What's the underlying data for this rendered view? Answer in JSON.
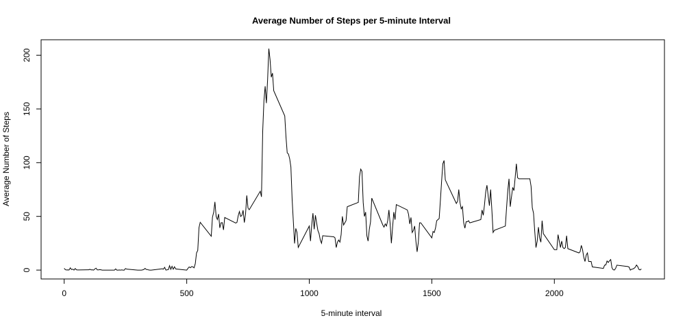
{
  "chart_data": {
    "type": "line",
    "title": "Average Number of Steps per 5-minute Interval",
    "xlabel": "5-minute interval",
    "ylabel": "Average Number of Steps",
    "color": "#000000",
    "xlim": [
      -94.2,
      2449.2
    ],
    "ylim": [
      -8.25,
      214.42
    ],
    "xticks": [
      0,
      500,
      1000,
      1500,
      2000
    ],
    "yticks": [
      0,
      50,
      100,
      150,
      200
    ],
    "x": [
      0,
      5,
      10,
      15,
      20,
      25,
      30,
      35,
      40,
      45,
      50,
      55,
      100,
      105,
      110,
      115,
      120,
      125,
      130,
      135,
      140,
      145,
      150,
      155,
      200,
      205,
      210,
      215,
      220,
      225,
      230,
      235,
      240,
      245,
      250,
      255,
      300,
      305,
      310,
      315,
      320,
      325,
      330,
      335,
      340,
      345,
      350,
      355,
      400,
      405,
      410,
      415,
      420,
      425,
      430,
      435,
      440,
      445,
      450,
      455,
      500,
      505,
      510,
      515,
      520,
      525,
      530,
      535,
      540,
      545,
      550,
      555,
      600,
      605,
      610,
      615,
      620,
      625,
      630,
      635,
      640,
      645,
      650,
      655,
      700,
      705,
      710,
      715,
      720,
      725,
      730,
      735,
      740,
      745,
      750,
      755,
      800,
      805,
      810,
      815,
      820,
      825,
      830,
      835,
      840,
      845,
      850,
      855,
      900,
      905,
      910,
      915,
      920,
      925,
      930,
      935,
      940,
      945,
      950,
      955,
      1000,
      1005,
      1010,
      1015,
      1020,
      1025,
      1030,
      1035,
      1040,
      1045,
      1050,
      1055,
      1100,
      1105,
      1110,
      1115,
      1120,
      1125,
      1130,
      1135,
      1140,
      1145,
      1150,
      1155,
      1200,
      1205,
      1210,
      1215,
      1220,
      1225,
      1230,
      1235,
      1240,
      1245,
      1250,
      1255,
      1300,
      1305,
      1310,
      1315,
      1320,
      1325,
      1330,
      1335,
      1340,
      1345,
      1350,
      1355,
      1400,
      1405,
      1410,
      1415,
      1420,
      1425,
      1430,
      1435,
      1440,
      1445,
      1450,
      1455,
      1500,
      1505,
      1510,
      1515,
      1520,
      1525,
      1530,
      1535,
      1540,
      1545,
      1550,
      1555,
      1600,
      1605,
      1610,
      1615,
      1620,
      1625,
      1630,
      1635,
      1640,
      1645,
      1650,
      1655,
      1700,
      1705,
      1710,
      1715,
      1720,
      1725,
      1730,
      1735,
      1740,
      1745,
      1750,
      1755,
      1800,
      1805,
      1810,
      1815,
      1820,
      1825,
      1830,
      1835,
      1840,
      1845,
      1850,
      1855,
      1900,
      1905,
      1910,
      1915,
      1920,
      1925,
      1930,
      1935,
      1940,
      1945,
      1950,
      1955,
      2000,
      2005,
      2010,
      2015,
      2020,
      2025,
      2030,
      2035,
      2040,
      2045,
      2050,
      2055,
      2100,
      2105,
      2110,
      2115,
      2120,
      2125,
      2130,
      2135,
      2140,
      2145,
      2150,
      2155,
      2200,
      2205,
      2210,
      2215,
      2220,
      2225,
      2230,
      2235,
      2240,
      2245,
      2250,
      2255,
      2300,
      2305,
      2310,
      2315,
      2320,
      2325,
      2330,
      2335,
      2340,
      2345,
      2350,
      2355
    ],
    "values": [
      1.7,
      0.3,
      0.1,
      0.2,
      0.1,
      2.1,
      0.5,
      0.9,
      0,
      1.5,
      0.3,
      0.1,
      0.3,
      0.7,
      0.2,
      0.3,
      0,
      1.1,
      1.8,
      0.2,
      0.2,
      0.4,
      0.3,
      0,
      0,
      0,
      1.1,
      0,
      0,
      0.1,
      0,
      0.2,
      0,
      0,
      1.5,
      0.9,
      0,
      0,
      0,
      0,
      0.2,
      0.6,
      1.6,
      0.6,
      0.5,
      0.1,
      0,
      0,
      1.2,
      0.9,
      2.6,
      0,
      0.3,
      0.4,
      4.1,
      0.7,
      3.5,
      0.8,
      3.1,
      1.1,
      0,
      1.6,
      3,
      2.2,
      3.3,
      3,
      2.1,
      6.1,
      16,
      18.3,
      39.5,
      44.5,
      31.5,
      49.3,
      53.8,
      63.5,
      50,
      47.1,
      52.2,
      39.3,
      44,
      44.2,
      37.4,
      49,
      43.8,
      44.4,
      50.5,
      54.5,
      49.9,
      50.9,
      55.7,
      44.3,
      52.3,
      69.5,
      57.8,
      56.2,
      73.4,
      68.2,
      129.4,
      157.5,
      171.2,
      155.4,
      177.3,
      206.2,
      195.9,
      179.6,
      183.4,
      167,
      143.5,
      124,
      109.1,
      108.1,
      103.7,
      96,
      66.2,
      45.2,
      24.8,
      38.8,
      35,
      21.1,
      41,
      27,
      42,
      53,
      38,
      51,
      44,
      37,
      34,
      28,
      25,
      32,
      31,
      30,
      21,
      26,
      28,
      26,
      33,
      50,
      42,
      44,
      46,
      59,
      63,
      87,
      94,
      92,
      63,
      50,
      54,
      32,
      27,
      38,
      45,
      67,
      42,
      40,
      43,
      41,
      46,
      56,
      43,
      25,
      40,
      54,
      47,
      61,
      56,
      52,
      43,
      49,
      35,
      37,
      41,
      27,
      17,
      26,
      44,
      44,
      30,
      36,
      35,
      39,
      46,
      47,
      48,
      65,
      83,
      99,
      102,
      84,
      62,
      64,
      75,
      63,
      57,
      59,
      44,
      39,
      45,
      45,
      46,
      44,
      47,
      56,
      51,
      61,
      73,
      79,
      69,
      60,
      75,
      56,
      35,
      37,
      41,
      58,
      74,
      85,
      59,
      68,
      77,
      74,
      86,
      99,
      86,
      85,
      85,
      78,
      58,
      53,
      36,
      21,
      27,
      40,
      30,
      26,
      46,
      34,
      19,
      19,
      19,
      33,
      27,
      21,
      27,
      21,
      20,
      21,
      32,
      20,
      16,
      17,
      23,
      19,
      12,
      8,
      14,
      16,
      8,
      8,
      8,
      3,
      1.6,
      4.6,
      4.8,
      8.5,
      7.1,
      8.7,
      9.8,
      2.2,
      0.3,
      0.1,
      1.6,
      4.6,
      3.3,
      2.8,
      0,
      0.8,
      1,
      1.6,
      2.6,
      4.7,
      3.3,
      0.6,
      0.2,
      1.1
    ]
  }
}
